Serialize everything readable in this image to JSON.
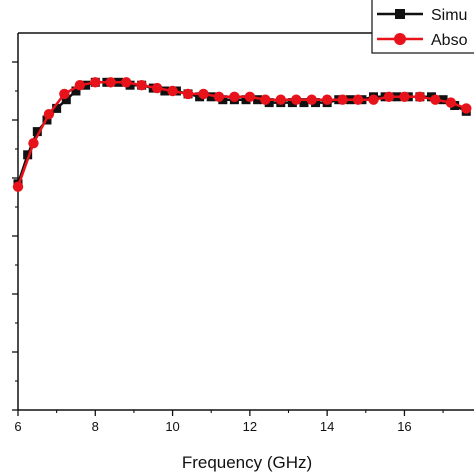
{
  "chart_data": {
    "type": "line",
    "title": "",
    "xlabel": "Frequency (GHz)",
    "ylabel": "",
    "xlim": [
      6,
      17.8
    ],
    "ylim": [
      0,
      1.3
    ],
    "x_ticks": [
      6,
      8,
      10,
      12,
      14,
      16
    ],
    "x_tick_labels": [
      "6",
      "8",
      "10",
      "12",
      "14",
      "16"
    ],
    "grid": false,
    "legend_position": "top-right",
    "series": [
      {
        "name": "Simu",
        "color": "#111111",
        "marker": "square",
        "x": [
          6.0,
          6.25,
          6.5,
          6.75,
          7.0,
          7.25,
          7.5,
          7.75,
          8.0,
          8.3,
          8.6,
          8.9,
          9.2,
          9.5,
          9.8,
          10.1,
          10.4,
          10.7,
          11.0,
          11.3,
          11.6,
          11.9,
          12.2,
          12.5,
          12.8,
          13.1,
          13.4,
          13.7,
          14.0,
          14.3,
          14.6,
          14.9,
          15.2,
          15.5,
          15.8,
          16.1,
          16.4,
          16.7,
          17.0,
          17.3,
          17.6
        ],
        "y": [
          0.78,
          0.88,
          0.96,
          1.0,
          1.04,
          1.07,
          1.1,
          1.12,
          1.13,
          1.13,
          1.13,
          1.12,
          1.12,
          1.11,
          1.1,
          1.1,
          1.09,
          1.08,
          1.08,
          1.07,
          1.07,
          1.07,
          1.07,
          1.06,
          1.06,
          1.06,
          1.06,
          1.06,
          1.06,
          1.07,
          1.07,
          1.07,
          1.08,
          1.08,
          1.08,
          1.08,
          1.08,
          1.08,
          1.07,
          1.05,
          1.03
        ]
      },
      {
        "name": "Abso",
        "color": "#e8121a",
        "marker": "circle",
        "x": [
          6.0,
          6.4,
          6.8,
          7.2,
          7.6,
          8.0,
          8.4,
          8.8,
          9.2,
          9.6,
          10.0,
          10.4,
          10.8,
          11.2,
          11.6,
          12.0,
          12.4,
          12.8,
          13.2,
          13.6,
          14.0,
          14.4,
          14.8,
          15.2,
          15.6,
          16.0,
          16.4,
          16.8,
          17.2,
          17.6
        ],
        "y": [
          0.77,
          0.92,
          1.02,
          1.09,
          1.12,
          1.13,
          1.13,
          1.13,
          1.12,
          1.11,
          1.1,
          1.09,
          1.09,
          1.08,
          1.08,
          1.08,
          1.07,
          1.07,
          1.07,
          1.07,
          1.07,
          1.07,
          1.07,
          1.07,
          1.08,
          1.08,
          1.08,
          1.07,
          1.06,
          1.04
        ]
      }
    ]
  }
}
